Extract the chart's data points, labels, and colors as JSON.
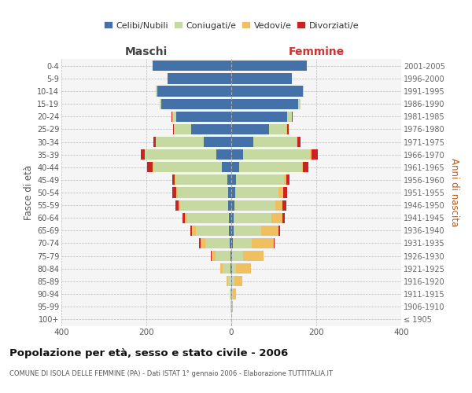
{
  "age_groups": [
    "100+",
    "95-99",
    "90-94",
    "85-89",
    "80-84",
    "75-79",
    "70-74",
    "65-69",
    "60-64",
    "55-59",
    "50-54",
    "45-49",
    "40-44",
    "35-39",
    "30-34",
    "25-29",
    "20-24",
    "15-19",
    "10-14",
    "5-9",
    "0-4"
  ],
  "birth_years": [
    "≤ 1905",
    "1906-1910",
    "1911-1915",
    "1916-1920",
    "1921-1925",
    "1926-1930",
    "1931-1935",
    "1936-1940",
    "1941-1945",
    "1946-1950",
    "1951-1955",
    "1956-1960",
    "1961-1965",
    "1966-1970",
    "1971-1975",
    "1976-1980",
    "1981-1985",
    "1986-1990",
    "1991-1995",
    "1996-2000",
    "2001-2005"
  ],
  "male": {
    "celibi": [
      0,
      0,
      0,
      0,
      2,
      2,
      3,
      5,
      6,
      8,
      8,
      10,
      22,
      35,
      65,
      95,
      130,
      165,
      175,
      150,
      185
    ],
    "coniugati": [
      0,
      1,
      3,
      8,
      18,
      35,
      58,
      78,
      98,
      112,
      118,
      122,
      162,
      168,
      112,
      40,
      8,
      3,
      3,
      0,
      0
    ],
    "vedovi": [
      0,
      0,
      1,
      3,
      6,
      10,
      12,
      10,
      5,
      4,
      3,
      2,
      1,
      1,
      1,
      0,
      1,
      0,
      0,
      0,
      0
    ],
    "divorziati": [
      0,
      0,
      0,
      0,
      0,
      2,
      3,
      4,
      5,
      8,
      10,
      5,
      13,
      9,
      5,
      2,
      1,
      0,
      0,
      0,
      0
    ]
  },
  "female": {
    "nubili": [
      0,
      0,
      1,
      1,
      2,
      2,
      3,
      5,
      6,
      8,
      10,
      12,
      18,
      28,
      52,
      88,
      132,
      158,
      168,
      142,
      178
    ],
    "coniugate": [
      0,
      1,
      2,
      6,
      10,
      25,
      45,
      65,
      88,
      96,
      102,
      112,
      148,
      158,
      102,
      42,
      10,
      5,
      3,
      0,
      0
    ],
    "vedove": [
      0,
      2,
      8,
      18,
      35,
      48,
      52,
      42,
      26,
      16,
      10,
      5,
      3,
      2,
      1,
      1,
      1,
      0,
      0,
      0,
      0
    ],
    "divorziate": [
      0,
      0,
      0,
      0,
      0,
      0,
      1,
      2,
      5,
      10,
      10,
      8,
      12,
      15,
      8,
      5,
      2,
      0,
      0,
      0,
      0
    ]
  },
  "colors": {
    "celibi": "#4472a8",
    "coniugati": "#c5d9a0",
    "vedovi": "#f0c060",
    "divorziati": "#cc2222"
  },
  "xlim": 400,
  "title": "Popolazione per età, sesso e stato civile - 2006",
  "subtitle": "COMUNE DI ISOLA DELLE FEMMINE (PA) - Dati ISTAT 1° gennaio 2006 - Elaborazione TUTTITALIA.IT",
  "ylabel_left": "Fasce di età",
  "ylabel_right": "Anni di nascita",
  "xlabel_left": "Maschi",
  "xlabel_right": "Femmine",
  "bg_color": "#f5f5f5"
}
